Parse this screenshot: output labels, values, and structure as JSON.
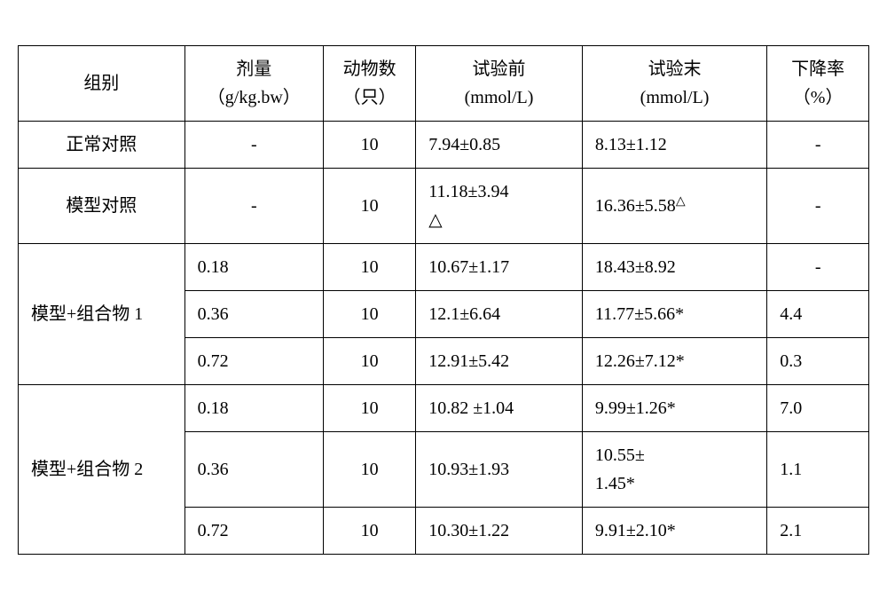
{
  "table": {
    "headers": {
      "group": {
        "line1": "组别",
        "line2": ""
      },
      "dose": {
        "line1": "剂量",
        "line2": "（g/kg.bw）"
      },
      "animals": {
        "line1": "动物数",
        "line2": "（只）"
      },
      "pre": {
        "line1": "试验前",
        "line2": "(mmol/L)"
      },
      "post": {
        "line1": "试验末",
        "line2": "(mmol/L)"
      },
      "rate": {
        "line1": "下降率",
        "line2": "（%）"
      }
    },
    "rows": {
      "normal": {
        "group": "正常对照",
        "dose": "-",
        "n": "10",
        "pre": "7.94±0.85",
        "post": "8.13±1.12",
        "rate": "-"
      },
      "model": {
        "group": "模型对照",
        "dose": "-",
        "n": "10",
        "pre": "11.18±3.94",
        "pre_sup": "△",
        "post": "16.36±5.58",
        "post_sup": "△",
        "rate": "-"
      },
      "comp1": {
        "group": "模型+组合物 1",
        "r1": {
          "dose": "0.18",
          "n": "10",
          "pre": "10.67±1.17",
          "post": "18.43±8.92",
          "rate": "-"
        },
        "r2": {
          "dose": "0.36",
          "n": "10",
          "pre": "12.1±6.64",
          "post": "11.77±5.66*",
          "rate": "4.4"
        },
        "r3": {
          "dose": "0.72",
          "n": "10",
          "pre": "12.91±5.42",
          "post": "12.26±7.12*",
          "rate": "0.3"
        }
      },
      "comp2": {
        "group": "模型+组合物 2",
        "r1": {
          "dose": "0.18",
          "n": "10",
          "pre": "10.82 ±1.04",
          "post": "9.99±1.26*",
          "rate": "7.0"
        },
        "r2": {
          "dose": "0.36",
          "n": "10",
          "pre": "10.93±1.93",
          "post_l1": "10.55±",
          "post_l2": "1.45*",
          "rate": "1.1"
        },
        "r3": {
          "dose": "0.72",
          "n": "10",
          "pre": "10.30±1.22",
          "post": "9.91±2.10*",
          "rate": "2.1"
        }
      }
    }
  },
  "colors": {
    "border": "#000000",
    "background": "#ffffff",
    "text": "#000000"
  },
  "font": {
    "size_pt": 15,
    "family": "SimSun"
  }
}
